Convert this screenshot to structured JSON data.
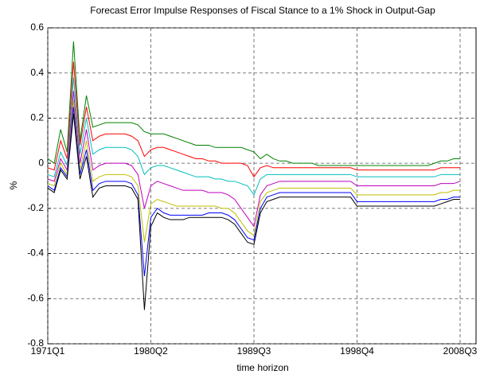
{
  "chart_data": {
    "type": "line",
    "title": "Forecast Error Impulse Responses of Fiscal Stance to a 1% Shock in Output-Gap",
    "x_label": "time horizon",
    "y_label": "%",
    "categories": [
      "1971Q1",
      null,
      null,
      null,
      null,
      null,
      null,
      null,
      null,
      null,
      null,
      null,
      null,
      null,
      null,
      null,
      "1980Q2",
      null,
      null,
      null,
      null,
      null,
      null,
      null,
      null,
      null,
      null,
      null,
      null,
      null,
      null,
      null,
      "1989Q3",
      null,
      null,
      null,
      null,
      null,
      null,
      null,
      null,
      null,
      null,
      null,
      null,
      null,
      null,
      null,
      "1998Q4",
      null,
      null,
      null,
      null,
      null,
      null,
      null,
      null,
      null,
      null,
      null,
      null,
      null,
      null,
      null,
      "2008Q3"
    ],
    "ylim": [
      -0.8,
      0.6
    ],
    "yticks": [
      -0.8,
      -0.6,
      -0.4,
      -0.2,
      0,
      0.2,
      0.4,
      0.6
    ],
    "grid": true,
    "series": [
      {
        "color": "#008000",
        "values": [
          0.02,
          0.0,
          0.15,
          0.05,
          0.54,
          0.1,
          0.3,
          0.16,
          0.17,
          0.18,
          0.18,
          0.18,
          0.18,
          0.18,
          0.17,
          0.14,
          0.13,
          0.13,
          0.13,
          0.12,
          0.11,
          0.1,
          0.09,
          0.08,
          0.08,
          0.08,
          0.07,
          0.07,
          0.07,
          0.07,
          0.07,
          0.06,
          0.05,
          0.02,
          0.04,
          0.02,
          0.01,
          0.01,
          0.0,
          0.0,
          0.0,
          0.0,
          -0.01,
          -0.01,
          -0.01,
          -0.01,
          -0.01,
          -0.01,
          -0.01,
          -0.01,
          -0.01,
          -0.01,
          -0.01,
          -0.01,
          -0.01,
          -0.01,
          -0.01,
          -0.01,
          -0.01,
          -0.01,
          0.0,
          0.01,
          0.01,
          0.02,
          0.02
        ]
      },
      {
        "color": "#ff0000",
        "values": [
          -0.02,
          -0.03,
          0.1,
          0.02,
          0.45,
          0.08,
          0.25,
          0.1,
          0.12,
          0.13,
          0.13,
          0.13,
          0.13,
          0.12,
          0.1,
          0.03,
          0.06,
          0.07,
          0.07,
          0.06,
          0.05,
          0.04,
          0.03,
          0.02,
          0.02,
          0.01,
          0.01,
          0.0,
          0.0,
          0.0,
          0.0,
          -0.01,
          -0.06,
          -0.02,
          -0.01,
          -0.02,
          -0.02,
          -0.02,
          -0.02,
          -0.02,
          -0.02,
          -0.02,
          -0.02,
          -0.02,
          -0.02,
          -0.02,
          -0.02,
          -0.02,
          -0.03,
          -0.03,
          -0.03,
          -0.03,
          -0.03,
          -0.03,
          -0.03,
          -0.03,
          -0.03,
          -0.03,
          -0.03,
          -0.03,
          -0.03,
          -0.02,
          -0.02,
          -0.02,
          -0.02
        ]
      },
      {
        "color": "#00bfbf",
        "values": [
          -0.05,
          -0.06,
          0.05,
          -0.01,
          0.38,
          0.04,
          0.2,
          0.04,
          0.06,
          0.07,
          0.07,
          0.07,
          0.07,
          0.06,
          0.03,
          -0.05,
          -0.02,
          -0.01,
          -0.01,
          -0.02,
          -0.03,
          -0.04,
          -0.05,
          -0.06,
          -0.06,
          -0.06,
          -0.07,
          -0.07,
          -0.08,
          -0.08,
          -0.09,
          -0.1,
          -0.14,
          -0.07,
          -0.05,
          -0.05,
          -0.05,
          -0.05,
          -0.05,
          -0.05,
          -0.05,
          -0.05,
          -0.05,
          -0.05,
          -0.05,
          -0.05,
          -0.05,
          -0.05,
          -0.06,
          -0.06,
          -0.06,
          -0.06,
          -0.06,
          -0.06,
          -0.06,
          -0.06,
          -0.06,
          -0.06,
          -0.06,
          -0.06,
          -0.06,
          -0.05,
          -0.05,
          -0.05,
          -0.05
        ]
      },
      {
        "color": "#bf00bf",
        "values": [
          -0.07,
          -0.08,
          0.02,
          -0.03,
          0.32,
          0.0,
          0.15,
          -0.03,
          -0.01,
          0.0,
          0.0,
          0.0,
          0.0,
          -0.01,
          -0.05,
          -0.2,
          -0.1,
          -0.08,
          -0.09,
          -0.1,
          -0.11,
          -0.12,
          -0.12,
          -0.12,
          -0.12,
          -0.13,
          -0.13,
          -0.13,
          -0.14,
          -0.16,
          -0.2,
          -0.24,
          -0.28,
          -0.14,
          -0.1,
          -0.09,
          -0.08,
          -0.08,
          -0.08,
          -0.08,
          -0.08,
          -0.08,
          -0.08,
          -0.08,
          -0.08,
          -0.08,
          -0.08,
          -0.08,
          -0.1,
          -0.1,
          -0.1,
          -0.1,
          -0.1,
          -0.1,
          -0.1,
          -0.1,
          -0.1,
          -0.1,
          -0.1,
          -0.1,
          -0.1,
          -0.09,
          -0.09,
          -0.09,
          -0.08
        ]
      },
      {
        "color": "#bfbf00",
        "values": [
          -0.09,
          -0.1,
          0.0,
          -0.05,
          0.28,
          -0.03,
          0.1,
          -0.08,
          -0.06,
          -0.05,
          -0.05,
          -0.05,
          -0.05,
          -0.06,
          -0.1,
          -0.35,
          -0.18,
          -0.16,
          -0.17,
          -0.18,
          -0.19,
          -0.19,
          -0.19,
          -0.19,
          -0.19,
          -0.19,
          -0.19,
          -0.2,
          -0.2,
          -0.22,
          -0.26,
          -0.3,
          -0.32,
          -0.17,
          -0.13,
          -0.12,
          -0.11,
          -0.11,
          -0.11,
          -0.11,
          -0.11,
          -0.11,
          -0.11,
          -0.11,
          -0.11,
          -0.11,
          -0.11,
          -0.11,
          -0.14,
          -0.14,
          -0.14,
          -0.14,
          -0.14,
          -0.14,
          -0.14,
          -0.14,
          -0.14,
          -0.14,
          -0.14,
          -0.14,
          -0.14,
          -0.13,
          -0.13,
          -0.12,
          -0.12
        ]
      },
      {
        "color": "#0000ff",
        "values": [
          -0.1,
          -0.12,
          -0.02,
          -0.06,
          0.25,
          -0.05,
          0.06,
          -0.12,
          -0.09,
          -0.08,
          -0.08,
          -0.08,
          -0.08,
          -0.09,
          -0.14,
          -0.5,
          -0.24,
          -0.2,
          -0.22,
          -0.23,
          -0.23,
          -0.23,
          -0.23,
          -0.23,
          -0.23,
          -0.22,
          -0.22,
          -0.22,
          -0.23,
          -0.25,
          -0.29,
          -0.33,
          -0.34,
          -0.2,
          -0.15,
          -0.14,
          -0.13,
          -0.13,
          -0.13,
          -0.13,
          -0.13,
          -0.13,
          -0.13,
          -0.13,
          -0.13,
          -0.13,
          -0.13,
          -0.13,
          -0.17,
          -0.17,
          -0.17,
          -0.17,
          -0.17,
          -0.17,
          -0.17,
          -0.17,
          -0.17,
          -0.17,
          -0.17,
          -0.17,
          -0.17,
          -0.16,
          -0.16,
          -0.15,
          -0.15
        ]
      },
      {
        "color": "#000000",
        "values": [
          -0.11,
          -0.13,
          -0.03,
          -0.07,
          0.22,
          -0.07,
          0.03,
          -0.15,
          -0.11,
          -0.1,
          -0.1,
          -0.1,
          -0.1,
          -0.11,
          -0.16,
          -0.65,
          -0.28,
          -0.22,
          -0.24,
          -0.25,
          -0.25,
          -0.25,
          -0.24,
          -0.24,
          -0.24,
          -0.24,
          -0.24,
          -0.24,
          -0.25,
          -0.27,
          -0.31,
          -0.35,
          -0.36,
          -0.22,
          -0.17,
          -0.16,
          -0.15,
          -0.15,
          -0.15,
          -0.15,
          -0.15,
          -0.15,
          -0.15,
          -0.15,
          -0.15,
          -0.15,
          -0.15,
          -0.15,
          -0.19,
          -0.19,
          -0.19,
          -0.19,
          -0.19,
          -0.19,
          -0.19,
          -0.19,
          -0.19,
          -0.19,
          -0.19,
          -0.19,
          -0.19,
          -0.18,
          -0.17,
          -0.16,
          -0.16
        ]
      }
    ]
  }
}
